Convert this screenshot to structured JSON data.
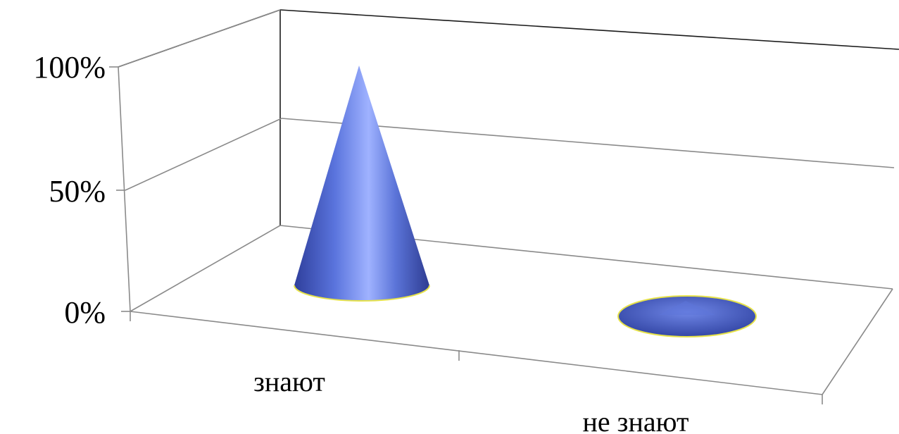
{
  "chart_data": {
    "type": "bar",
    "shape": "cone",
    "projection": "3d",
    "categories": [
      "знают",
      "не знают"
    ],
    "values": [
      100,
      0
    ],
    "ylim": [
      0,
      100
    ],
    "yticks": [
      0,
      50,
      100
    ],
    "ytick_labels": [
      "0%",
      "50%",
      "100%"
    ],
    "grid": true,
    "legend": "none",
    "colors": {
      "cone": "#4a63cf",
      "cone_highlight": "#9fb2ff",
      "cone_shadow": "#2e3f9a",
      "base_outline": "#e6e24a"
    }
  }
}
